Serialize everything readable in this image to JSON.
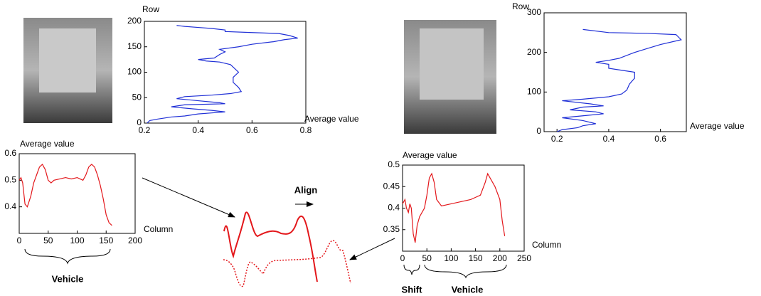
{
  "chart_data": [
    {
      "type": "line",
      "x_label": "Average value",
      "y_label": "Row",
      "xlim": [
        0.2,
        0.8
      ],
      "xticks": [
        0.2,
        0.4,
        0.6,
        0.8
      ],
      "ylim": [
        0,
        200
      ],
      "yticks": [
        0,
        50,
        100,
        150,
        200
      ],
      "x": [
        0.21,
        0.22,
        0.25,
        0.3,
        0.35,
        0.4,
        0.45,
        0.5,
        0.45,
        0.38,
        0.3,
        0.35,
        0.5,
        0.48,
        0.4,
        0.32,
        0.35,
        0.45,
        0.52,
        0.56,
        0.55,
        0.53,
        0.53,
        0.55,
        0.53,
        0.52,
        0.48,
        0.43,
        0.4,
        0.46,
        0.48,
        0.5,
        0.48,
        0.55,
        0.6,
        0.68,
        0.72,
        0.77,
        0.74,
        0.7,
        0.6,
        0.5,
        0.5,
        0.45,
        0.4,
        0.35,
        0.32
      ],
      "series": [
        {
          "color": "#1f2fd6",
          "values": [
            0,
            5,
            8,
            12,
            14,
            18,
            20,
            22,
            25,
            28,
            32,
            36,
            38,
            40,
            44,
            48,
            52,
            55,
            58,
            62,
            70,
            80,
            90,
            100,
            110,
            115,
            120,
            122,
            125,
            128,
            135,
            140,
            145,
            150,
            155,
            160,
            164,
            167,
            172,
            176,
            178,
            180,
            183,
            186,
            188,
            190,
            192
          ]
        }
      ]
    },
    {
      "type": "line",
      "x_label": "Average value",
      "y_label": "Row",
      "xlim": [
        0.15,
        0.7
      ],
      "xticks": [
        0.2,
        0.4,
        0.6
      ],
      "ylim": [
        0,
        300
      ],
      "yticks": [
        0,
        100,
        200,
        300
      ],
      "x": [
        0.2,
        0.22,
        0.28,
        0.3,
        0.35,
        0.3,
        0.22,
        0.3,
        0.38,
        0.35,
        0.25,
        0.3,
        0.38,
        0.33,
        0.22,
        0.3,
        0.4,
        0.45,
        0.47,
        0.48,
        0.5,
        0.5,
        0.45,
        0.4,
        0.4,
        0.35,
        0.4,
        0.44,
        0.5,
        0.55,
        0.6,
        0.68,
        0.66,
        0.55,
        0.4,
        0.3
      ],
      "series": [
        {
          "color": "#1f2fd6",
          "values": [
            0,
            5,
            10,
            15,
            20,
            28,
            35,
            40,
            45,
            50,
            55,
            62,
            65,
            70,
            78,
            82,
            88,
            95,
            105,
            120,
            135,
            150,
            155,
            160,
            170,
            175,
            180,
            185,
            200,
            210,
            220,
            232,
            245,
            248,
            250,
            258
          ]
        }
      ]
    },
    {
      "type": "line",
      "x_label": "Column",
      "y_label": "Average value",
      "xlim": [
        0,
        200
      ],
      "xticks": [
        0,
        50,
        100,
        150,
        200
      ],
      "ylim": [
        0.3,
        0.6
      ],
      "yticks": [
        0.4,
        0.5,
        0.6
      ],
      "x": [
        0,
        3,
        6,
        10,
        14,
        20,
        25,
        30,
        35,
        40,
        45,
        50,
        55,
        60,
        70,
        80,
        90,
        100,
        110,
        115,
        120,
        125,
        130,
        135,
        140,
        145,
        150,
        155,
        160
      ],
      "series": [
        {
          "color": "#e3171b",
          "values": [
            0.5,
            0.51,
            0.49,
            0.41,
            0.4,
            0.44,
            0.49,
            0.52,
            0.55,
            0.56,
            0.54,
            0.5,
            0.49,
            0.5,
            0.505,
            0.51,
            0.505,
            0.51,
            0.5,
            0.52,
            0.55,
            0.56,
            0.55,
            0.52,
            0.48,
            0.43,
            0.37,
            0.34,
            0.33
          ]
        }
      ]
    },
    {
      "type": "line",
      "x_label": "Column",
      "y_label": "Average value",
      "xlim": [
        0,
        250
      ],
      "xticks": [
        0,
        50,
        100,
        150,
        200,
        250
      ],
      "ylim": [
        0.3,
        0.5
      ],
      "yticks": [
        0.35,
        0.4,
        0.45,
        0.5
      ],
      "x": [
        0,
        5,
        8,
        12,
        15,
        18,
        22,
        26,
        30,
        35,
        40,
        45,
        50,
        55,
        60,
        65,
        70,
        80,
        100,
        120,
        140,
        150,
        160,
        170,
        175,
        180,
        190,
        200,
        205,
        210
      ],
      "series": [
        {
          "color": "#e3171b",
          "values": [
            0.41,
            0.42,
            0.4,
            0.39,
            0.41,
            0.4,
            0.34,
            0.32,
            0.36,
            0.38,
            0.39,
            0.4,
            0.43,
            0.47,
            0.48,
            0.46,
            0.42,
            0.405,
            0.41,
            0.415,
            0.42,
            0.425,
            0.43,
            0.46,
            0.48,
            0.47,
            0.45,
            0.42,
            0.37,
            0.335
          ]
        }
      ]
    }
  ],
  "annotations": {
    "align": "Align",
    "left_brace": "Vehicle",
    "shift": "Shift",
    "right_brace": "Vehicle"
  }
}
